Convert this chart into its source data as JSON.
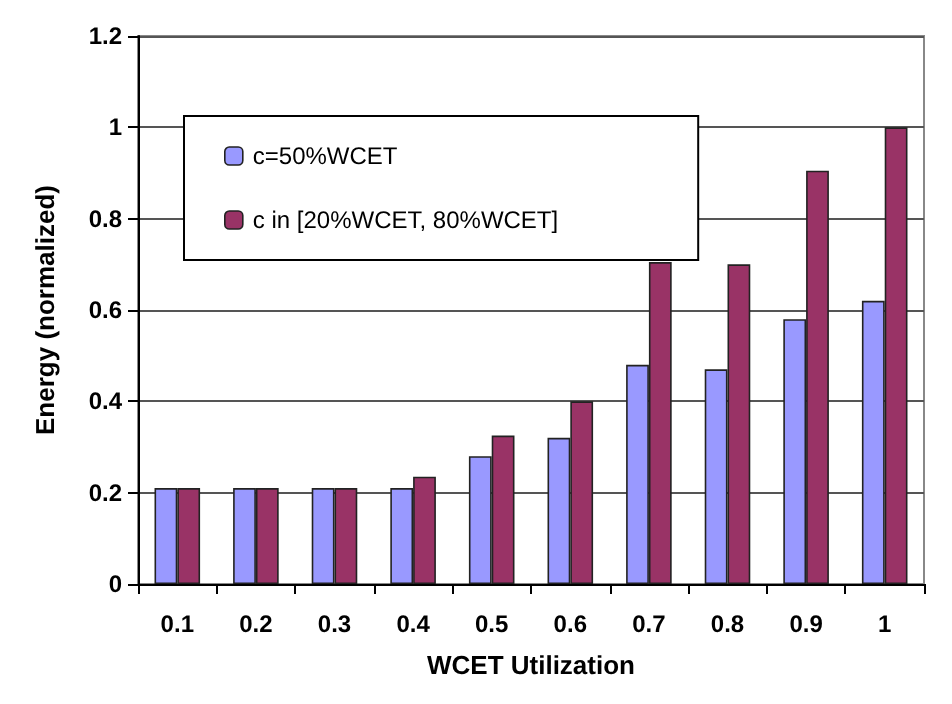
{
  "chart_data": {
    "type": "bar",
    "xlabel": "WCET Utilization",
    "ylabel": "Energy (normalized)",
    "categories": [
      "0.1",
      "0.2",
      "0.3",
      "0.4",
      "0.5",
      "0.6",
      "0.7",
      "0.8",
      "0.9",
      "1"
    ],
    "series": [
      {
        "name": "c=50%WCET",
        "color": "#9999ff",
        "values": [
          0.21,
          0.21,
          0.21,
          0.21,
          0.28,
          0.32,
          0.48,
          0.47,
          0.58,
          0.62
        ]
      },
      {
        "name": "c in [20%WCET, 80%WCET]",
        "color": "#993366",
        "values": [
          0.21,
          0.21,
          0.21,
          0.235,
          0.325,
          0.4,
          0.705,
          0.7,
          0.905,
          1.0
        ]
      }
    ],
    "ylim": [
      0,
      1.2
    ],
    "yticks": [
      0,
      0.2,
      0.4,
      0.6,
      0.8,
      1,
      1.2
    ],
    "grid": "y",
    "legend": "top left"
  }
}
